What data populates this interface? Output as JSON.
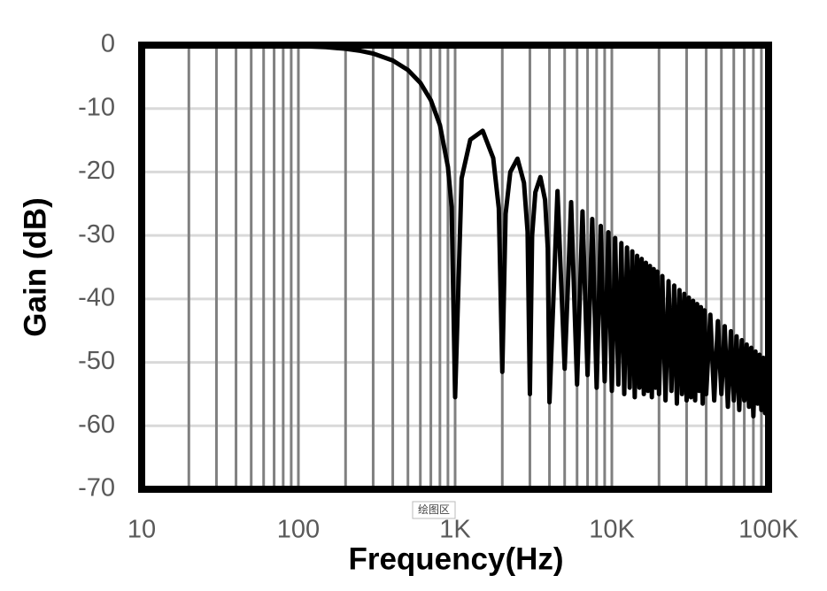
{
  "chart_data": {
    "type": "line",
    "x_label": "Frequency(Hz)",
    "y_label": "Gain (dB)",
    "annotation": "绘图区",
    "x_log": true,
    "grid": true,
    "color": "#000000",
    "xlim": [
      10,
      100000
    ],
    "ylim": [
      -70,
      0
    ],
    "xticks": [
      10,
      100,
      {
        "value": 1000,
        "label": "1K"
      },
      {
        "value": 10000,
        "label": "10K"
      },
      {
        "value": 100000,
        "label": "100K"
      }
    ],
    "x_minor_ticks": [
      20,
      30,
      40,
      50,
      60,
      70,
      80,
      90,
      200,
      300,
      400,
      500,
      600,
      700,
      800,
      900,
      2000,
      3000,
      4000,
      5000,
      6000,
      7000,
      8000,
      9000,
      20000,
      30000,
      40000,
      50000,
      60000,
      70000,
      80000,
      90000
    ],
    "yticks": [
      0,
      -10,
      -20,
      -30,
      -40,
      -50,
      -60,
      -70
    ],
    "x": [
      10,
      20,
      50,
      100,
      150,
      200,
      250,
      300,
      400,
      500,
      600,
      700,
      800,
      900,
      950,
      1000,
      1100,
      1250,
      1500,
      1750,
      1900,
      2000,
      2100,
      2250,
      2500,
      2750,
      2900,
      3000,
      3100,
      3250,
      3500,
      3750,
      3900,
      4000,
      4500,
      5000,
      5500,
      6000,
      6500,
      7000,
      7500,
      8000,
      8500,
      9000,
      9500,
      10000,
      10500,
      11000,
      11500,
      12000,
      12500,
      13000,
      13500,
      14000,
      14500,
      15000,
      15500,
      16000,
      16500,
      17000,
      17500,
      18000,
      18500,
      19000,
      19500,
      20000,
      21000,
      22000,
      23000,
      24000,
      25000,
      26000,
      27000,
      28000,
      29000,
      30000,
      31000,
      32000,
      33000,
      34000,
      35000,
      36000,
      37000,
      38000,
      39000,
      40000,
      42500,
      45000,
      47500,
      50000,
      52500,
      55000,
      57500,
      60000,
      62500,
      65000,
      67500,
      70000,
      72500,
      75000,
      77500,
      80000,
      82500,
      85000,
      87500,
      90000,
      92500,
      95000,
      97500,
      100000
    ],
    "values": [
      0,
      -0.01,
      -0.04,
      -0.14,
      -0.32,
      -0.58,
      -0.91,
      -1.33,
      -2.42,
      -3.92,
      -5.94,
      -8.68,
      -12.6,
      -19.2,
      -25.5,
      -55.5,
      -21,
      -14.9,
      -13.5,
      -17.8,
      -25.7,
      -51.5,
      -26.6,
      -20,
      -17.9,
      -21.7,
      -29.4,
      -55,
      -30,
      -23.2,
      -20.8,
      -24.4,
      -32,
      -56.3,
      -23,
      -51,
      -24.75,
      -53.5,
      -26.2,
      -52,
      -27.4,
      -54,
      -28.5,
      -53,
      -29.5,
      -54.5,
      -30.4,
      -53.5,
      -31.2,
      -55,
      -31.9,
      -54,
      -32.5,
      -55.5,
      -33.2,
      -54,
      -33.7,
      -55,
      -34.3,
      -54.5,
      -34.8,
      -55.5,
      -35.3,
      -54,
      -35.7,
      -55,
      -36.4,
      -56,
      -37.2,
      -54.5,
      -37.9,
      -56.5,
      -38.6,
      -55,
      -39.2,
      -56,
      -39.8,
      -55.5,
      -40.3,
      -56,
      -40.8,
      -54.5,
      -41.3,
      -56.5,
      -41.8,
      -55,
      -42.5,
      -56,
      -43.5,
      -55,
      -44.3,
      -57,
      -45.1,
      -56,
      -45.9,
      -57.5,
      -46.5,
      -56,
      -47.2,
      -57,
      -47.7,
      -58.5,
      -48.3,
      -56.5,
      -48.8,
      -57.5,
      -49.3,
      -58,
      -49.7,
      -55
    ]
  }
}
